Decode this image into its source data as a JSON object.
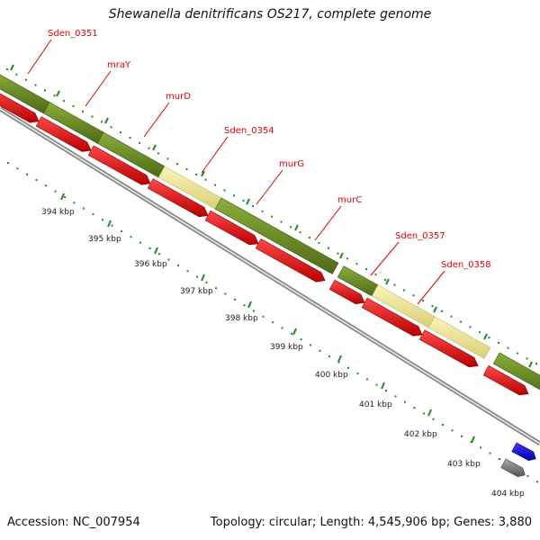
{
  "title": "Shewanella denitrificans OS217, complete genome",
  "footer": {
    "accession": "Accession: NC_007954",
    "topology": "Topology: circular; Length: 4,545,906 bp; Genes: 3,880"
  },
  "gene_labels": [
    "Sden_0351",
    "mraY",
    "murD",
    "Sden_0354",
    "murG",
    "murC",
    "Sden_0357",
    "Sden_0358"
  ],
  "kbp_labels": [
    "394 kbp",
    "395 kbp",
    "396 kbp",
    "397 kbp",
    "398 kbp",
    "399 kbp",
    "400 kbp",
    "401 kbp",
    "402 kbp",
    "403 kbp",
    "404 kbp"
  ],
  "colors": {
    "cds": "#ee1111",
    "gene_dark": "#6b8e23",
    "gene_light": "#f0e68c",
    "backbone": "#999999",
    "ticks": "#228b22",
    "label": "#e00000",
    "blue_feature": "#0000ee",
    "gray_feature": "#777777"
  }
}
